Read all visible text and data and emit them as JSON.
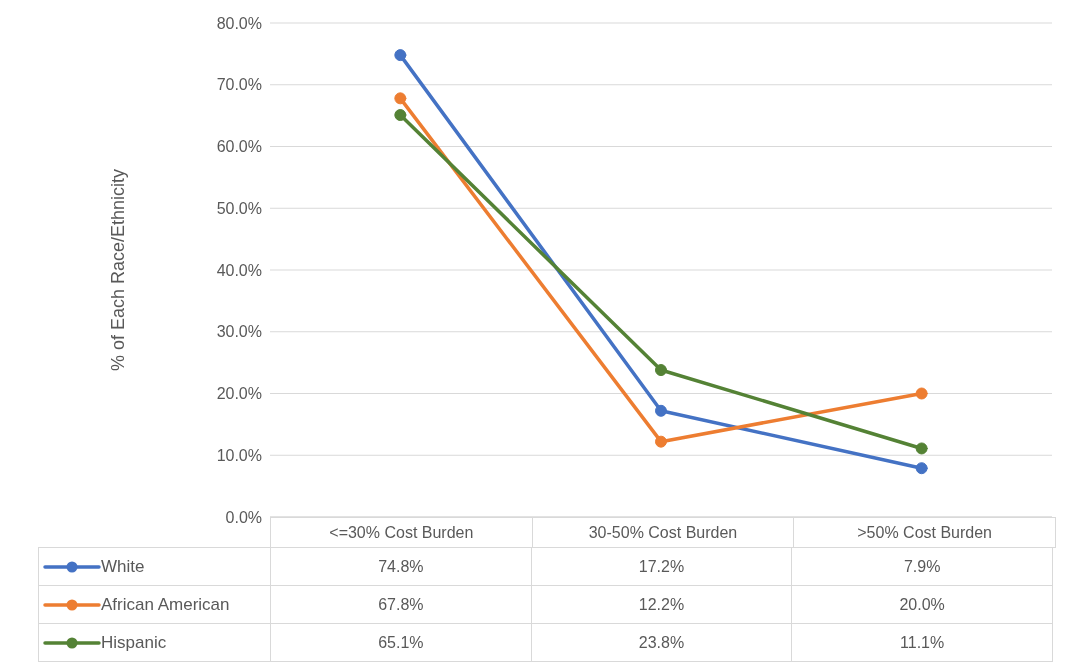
{
  "chart_data": {
    "type": "line",
    "categories": [
      "<=30% Cost Burden",
      "30-50% Cost Burden",
      ">50% Cost Burden"
    ],
    "ylabel": "% of Each Race/Ethnicity",
    "ylim": [
      0,
      80
    ],
    "yticks": [
      {
        "value": 0,
        "label": "0.0%"
      },
      {
        "value": 10,
        "label": "10.0%"
      },
      {
        "value": 20,
        "label": "20.0%"
      },
      {
        "value": 30,
        "label": "30.0%"
      },
      {
        "value": 40,
        "label": "40.0%"
      },
      {
        "value": 50,
        "label": "50.0%"
      },
      {
        "value": 60,
        "label": "60.0%"
      },
      {
        "value": 70,
        "label": "70.0%"
      },
      {
        "value": 80,
        "label": "80.0%"
      }
    ],
    "grid": "y",
    "legend": "bottom left",
    "marker": "circle",
    "line_style": "solid",
    "series": [
      {
        "name": "White",
        "color": "#4472c4",
        "values": [
          74.8,
          17.2,
          7.9
        ],
        "value_labels": [
          "74.8%",
          "17.2%",
          "7.9%"
        ]
      },
      {
        "name": "African American",
        "color": "#ed7d31",
        "values": [
          67.8,
          12.2,
          20.0
        ],
        "value_labels": [
          "67.8%",
          "12.2%",
          "20.0%"
        ]
      },
      {
        "name": "Hispanic",
        "color": "#548235",
        "values": [
          65.1,
          23.8,
          11.1
        ],
        "value_labels": [
          "65.1%",
          "23.8%",
          "11.1%"
        ]
      }
    ]
  }
}
